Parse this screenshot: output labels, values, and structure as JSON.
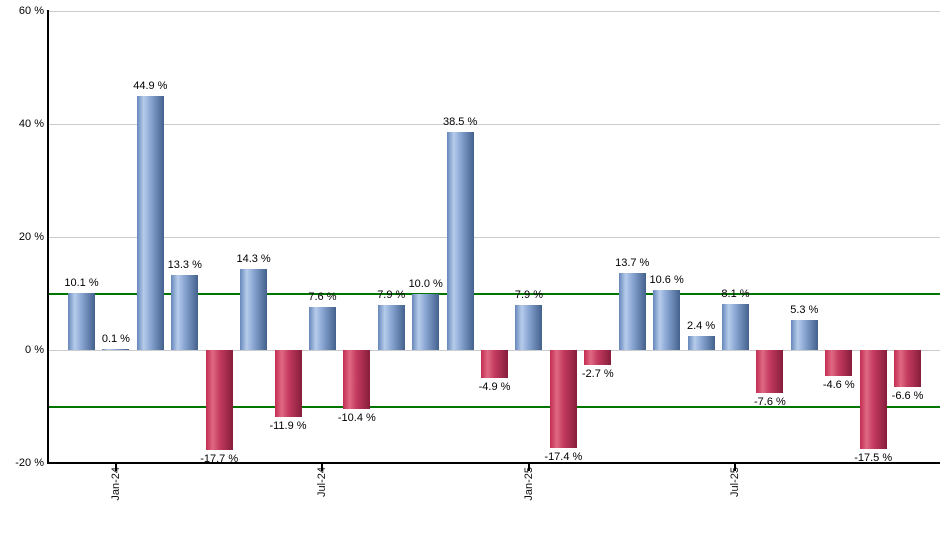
{
  "chart_data": {
    "type": "bar",
    "title": "",
    "xlabel": "",
    "ylabel": "",
    "ylim": [
      -20,
      60
    ],
    "grid": true,
    "values": [
      10.1,
      0.1,
      44.9,
      13.3,
      -17.7,
      14.3,
      -11.9,
      7.6,
      -10.4,
      7.9,
      10.0,
      38.5,
      -4.9,
      7.9,
      -17.4,
      -2.7,
      13.7,
      10.6,
      2.4,
      8.1,
      -7.6,
      5.3,
      -4.6,
      -17.5,
      -6.6
    ],
    "bar_labels": [
      "10.1 %",
      "0.1 %",
      "44.9 %",
      "13.3 %",
      "-17.7 %",
      "14.3 %",
      "-11.9 %",
      "7.6 %",
      "-10.4 %",
      "7.9 %",
      "10.0 %",
      "38.5 %",
      "-4.9 %",
      "7.9 %",
      "-17.4 %",
      "-2.7 %",
      "13.7 %",
      "10.6 %",
      "2.4 %",
      "8.1 %",
      "-7.6 %",
      "5.3 %",
      "-4.6 %",
      "-17.5 %",
      "-6.6 %"
    ],
    "x_ticks": [
      {
        "index": 1,
        "label": "Jan-24"
      },
      {
        "index": 7,
        "label": "Jul-24"
      },
      {
        "index": 13,
        "label": "Jan-25"
      },
      {
        "index": 19,
        "label": "Jul-25"
      }
    ],
    "y_ticks": [
      {
        "value": 60,
        "label": "60 %"
      },
      {
        "value": 40,
        "label": "40 %"
      },
      {
        "value": 20,
        "label": "20 %"
      },
      {
        "value": 0,
        "label": "0 %"
      },
      {
        "value": -20,
        "label": "-20 %"
      }
    ],
    "gridline_values": [
      60,
      40,
      20,
      0
    ],
    "benchmark_lines": [
      10,
      -10
    ],
    "colors": {
      "positive_bar_gradient": [
        "#6787ba",
        "#b6cceb",
        "#8aa6d3",
        "#44608c"
      ],
      "negative_bar_gradient": [
        "#c22c52",
        "#e06983",
        "#c43b60",
        "#871d3b"
      ],
      "benchmark_line": "#007600",
      "gridline": "#cccccc",
      "axis": "#000000",
      "label_text": "#000000"
    }
  }
}
